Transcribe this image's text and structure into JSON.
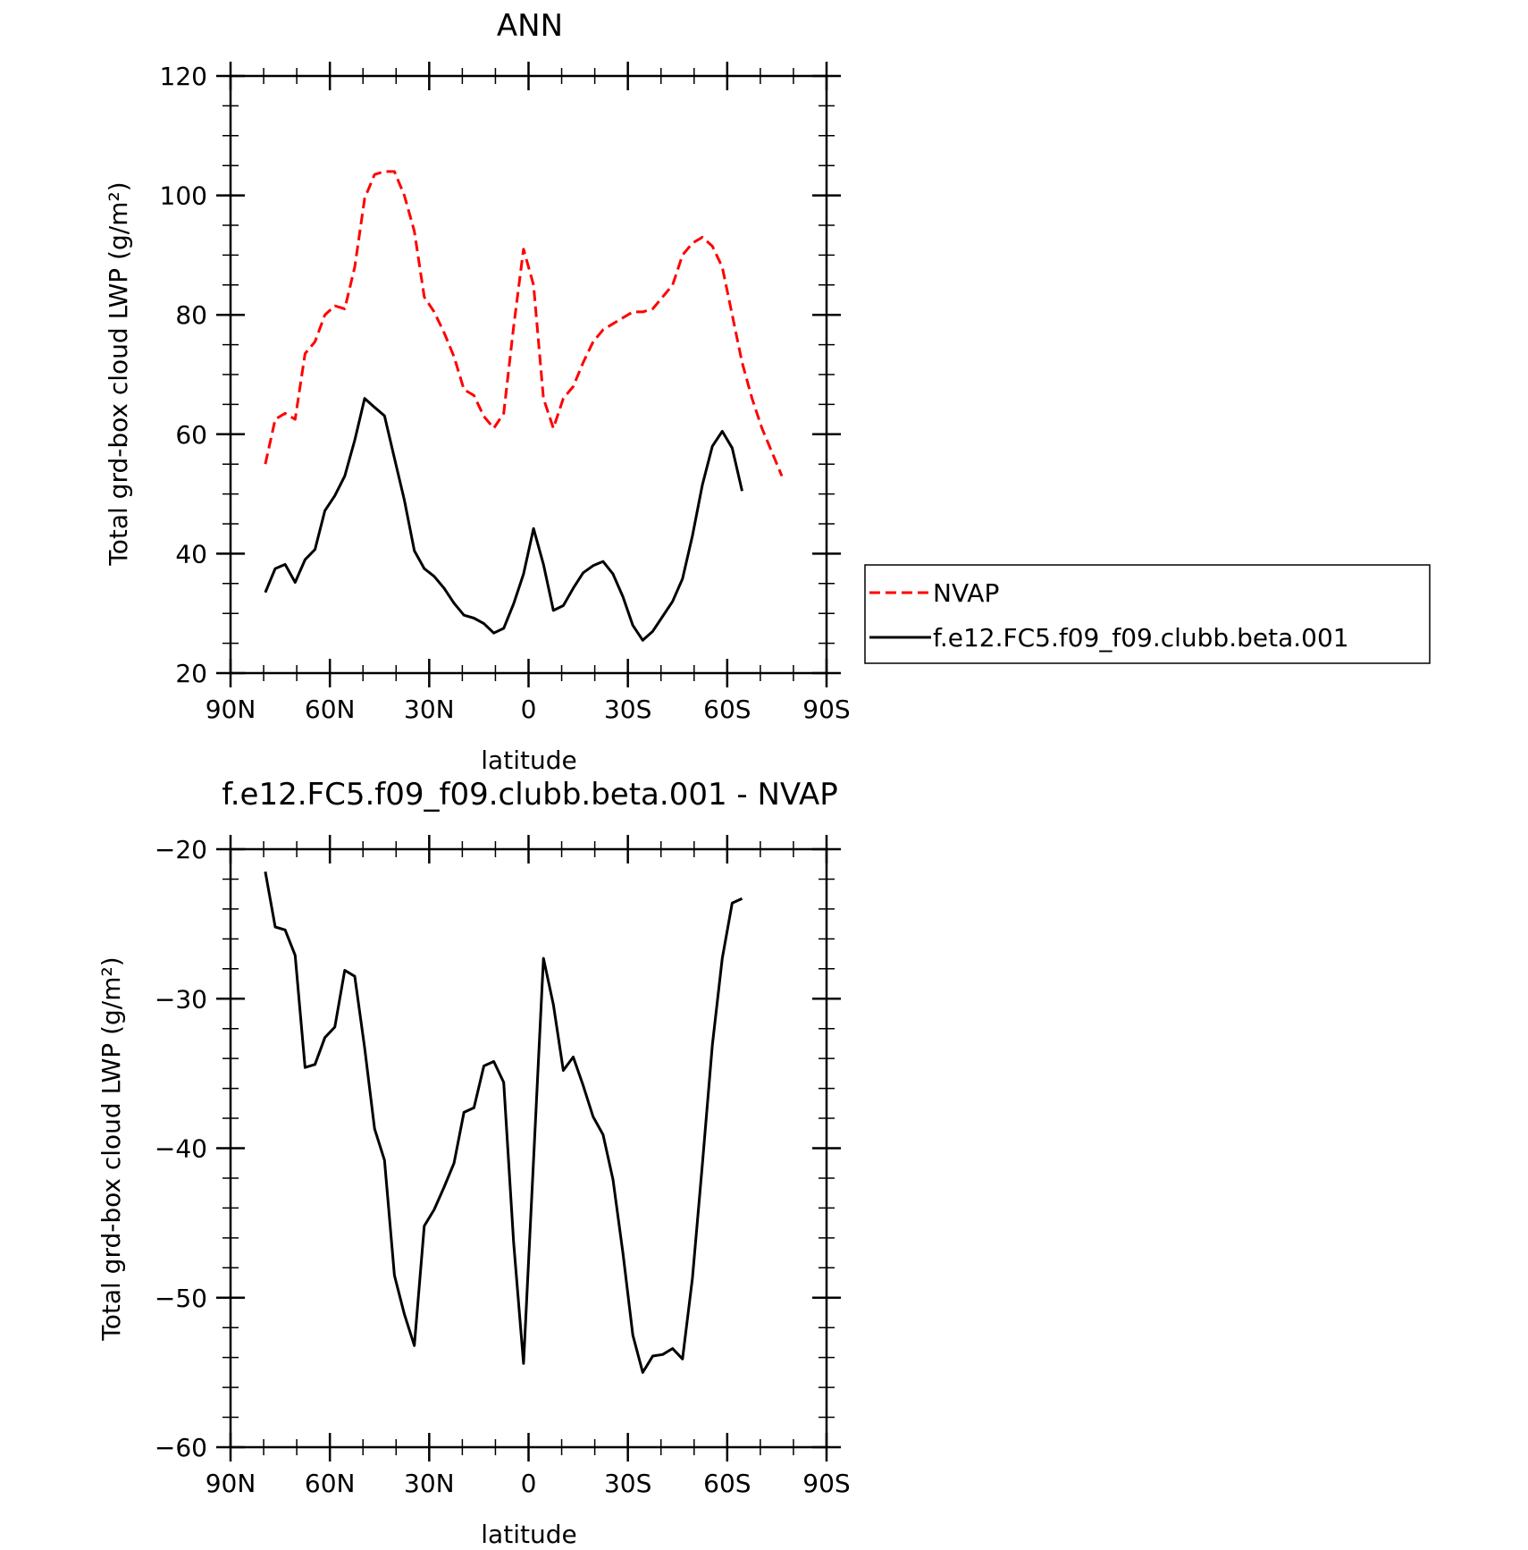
{
  "chart_data": [
    {
      "type": "line",
      "title": "ANN",
      "xlabel": "latitude",
      "ylabel": "Total grd-box cloud LWP (g/m²)",
      "xlim": [
        90,
        -90
      ],
      "ylim": [
        20,
        120
      ],
      "x_ticks": [
        90,
        60,
        30,
        0,
        -30,
        -60,
        -90
      ],
      "x_tick_labels": [
        "90N",
        "60N",
        "30N",
        "0",
        "30S",
        "60S",
        "90S"
      ],
      "y_ticks": [
        20,
        40,
        60,
        80,
        100,
        120
      ],
      "y_tick_labels": [
        "20",
        "40",
        "60",
        "80",
        "100",
        "120"
      ],
      "legend": {
        "position": "right"
      },
      "series": [
        {
          "name": "NVAP",
          "color": "#ff0000",
          "dash": "dashed",
          "x": [
            79.5,
            76.5,
            73.5,
            70.5,
            67.5,
            64.5,
            61.5,
            58.5,
            55.5,
            52.5,
            49.5,
            46.5,
            43.5,
            40.5,
            37.5,
            34.5,
            31.5,
            28.5,
            25.5,
            22.5,
            19.5,
            16.5,
            13.5,
            10.5,
            7.5,
            4.5,
            1.5,
            -1.5,
            -4.5,
            -7.5,
            -10.5,
            -13.5,
            -16.5,
            -19.5,
            -22.5,
            -25.5,
            -28.5,
            -31.5,
            -34.5,
            -37.5,
            -40.5,
            -43.5,
            -46.5,
            -49.5,
            -52.5,
            -55.5,
            -58.5,
            -61.5,
            -64.5,
            -67.5,
            -70.5,
            -73.5,
            -76.5
          ],
          "y": [
            55,
            62.5,
            63.5,
            62.5,
            73.5,
            75.5,
            80,
            81.5,
            81,
            88,
            99.5,
            103.5,
            104,
            104,
            100,
            94,
            83,
            80.5,
            77,
            73,
            67.5,
            66.5,
            63,
            61,
            63.5,
            78,
            91,
            85,
            66,
            61,
            66,
            68,
            72,
            75.5,
            77.5,
            78.5,
            79.5,
            80.5,
            80.5,
            81,
            83,
            85,
            90,
            92,
            93,
            91.5,
            88,
            80,
            72,
            66,
            61,
            57,
            53
          ]
        },
        {
          "name": "f.e12.FC5.f09_f09.clubb.beta.001",
          "color": "#000000",
          "dash": "solid",
          "x": [
            79.5,
            76.5,
            73.5,
            70.5,
            67.5,
            64.5,
            61.5,
            58.5,
            55.5,
            52.5,
            49.5,
            46.5,
            43.5,
            40.5,
            37.5,
            34.5,
            31.5,
            28.5,
            25.5,
            22.5,
            19.5,
            16.5,
            13.5,
            10.5,
            7.5,
            4.5,
            1.5,
            -1.5,
            -4.5,
            -7.5,
            -10.5,
            -13.5,
            -16.5,
            -19.5,
            -22.5,
            -25.5,
            -28.5,
            -31.5,
            -34.5,
            -37.5,
            -40.5,
            -43.5,
            -46.5,
            -49.5,
            -52.5,
            -55.5,
            -58.5,
            -61.5,
            -64.5
          ],
          "y": [
            33.5,
            37.5,
            38.2,
            35.2,
            39,
            40.7,
            47.2,
            49.7,
            53,
            59,
            66,
            64.5,
            63.1,
            56,
            49,
            40.5,
            37.5,
            36.2,
            34.2,
            31.7,
            29.7,
            29.2,
            28.3,
            26.7,
            27.5,
            31.6,
            36.6,
            44.2,
            38.2,
            30.5,
            31.3,
            34.2,
            36.8,
            38,
            38.7,
            36.6,
            32.8,
            28,
            25.5,
            27,
            29.5,
            32,
            35.8,
            43,
            51.5,
            58,
            60.5,
            57.7,
            50.5
          ]
        }
      ]
    },
    {
      "type": "line",
      "title": "f.e12.FC5.f09_f09.clubb.beta.001 - NVAP",
      "xlabel": "latitude",
      "ylabel": "Total grd-box cloud LWP (g/m²)",
      "xlim": [
        90,
        -90
      ],
      "ylim": [
        -60,
        -20
      ],
      "x_ticks": [
        90,
        60,
        30,
        0,
        -30,
        -60,
        -90
      ],
      "x_tick_labels": [
        "90N",
        "60N",
        "30N",
        "0",
        "30S",
        "60S",
        "90S"
      ],
      "y_ticks": [
        -20,
        -30,
        -40,
        -50,
        -60
      ],
      "y_tick_labels": [
        "−20",
        "−30",
        "−40",
        "−50",
        "−60"
      ],
      "series": [
        {
          "color": "#000000",
          "dash": "solid",
          "x": [
            79.5,
            76.5,
            73.5,
            70.5,
            67.5,
            64.5,
            61.5,
            58.5,
            55.5,
            52.5,
            49.5,
            46.5,
            43.5,
            40.5,
            37.5,
            34.5,
            31.5,
            28.5,
            25.5,
            22.5,
            19.5,
            16.5,
            13.5,
            10.5,
            7.5,
            4.5,
            1.5,
            -1.5,
            -4.5,
            -7.5,
            -10.5,
            -13.5,
            -16.5,
            -19.5,
            -22.5,
            -25.5,
            -28.5,
            -31.5,
            -34.5,
            -37.5,
            -40.5,
            -43.5,
            -46.5,
            -49.5,
            -52.5,
            -55.5,
            -58.5,
            -61.5,
            -64.5
          ],
          "y": [
            -21.5,
            -25.2,
            -25.4,
            -27.1,
            -34.6,
            -34.4,
            -32.6,
            -31.9,
            -28.1,
            -28.5,
            -33.3,
            -38.7,
            -40.8,
            -48.5,
            -51.1,
            -53.2,
            -45.2,
            -44.1,
            -42.6,
            -41,
            -37.6,
            -37.3,
            -34.5,
            -34.2,
            -35.6,
            -46.3,
            -54.4,
            -40.8,
            -27.3,
            -30.4,
            -34.8,
            -33.9,
            -35.8,
            -37.9,
            -39.1,
            -42.1,
            -47,
            -52.5,
            -55,
            -53.9,
            -53.8,
            -53.4,
            -54.1,
            -48.7,
            -41.1,
            -33.1,
            -27.3,
            -23.6,
            -23.3
          ]
        }
      ]
    }
  ]
}
